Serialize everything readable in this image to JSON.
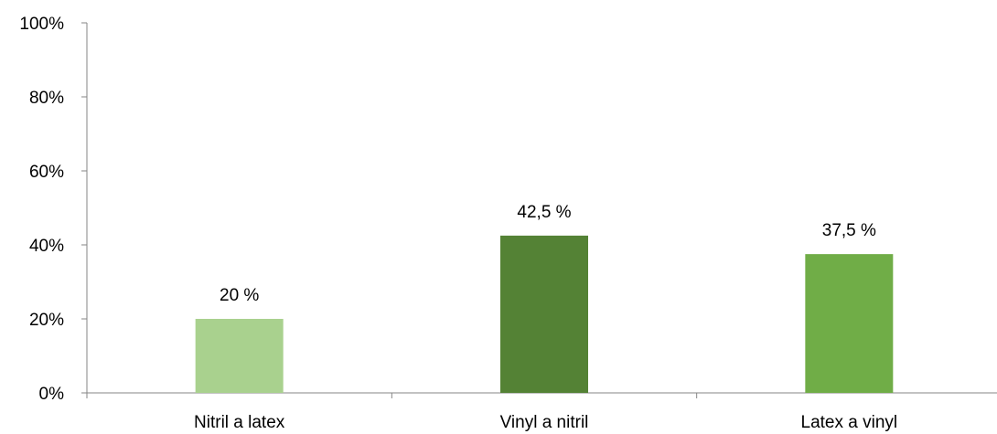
{
  "chart_data": {
    "type": "bar",
    "categories": [
      "Nitril a latex",
      "Vinyl a nitril",
      "Latex a vinyl"
    ],
    "values": [
      20,
      42.5,
      37.5
    ],
    "data_labels": [
      "20 %",
      "42,5 %",
      "37,5 %"
    ],
    "bar_colors": [
      "#a9d18e",
      "#548235",
      "#70ad47"
    ],
    "y_ticks": [
      0,
      20,
      40,
      60,
      80,
      100
    ],
    "y_tick_labels": [
      "0%",
      "20%",
      "40%",
      "60%",
      "80%",
      "100%"
    ],
    "ylim": [
      0,
      100
    ],
    "title": "",
    "xlabel": "",
    "ylabel": "",
    "grid": false,
    "legend": "none",
    "axis_color": "#868686"
  }
}
